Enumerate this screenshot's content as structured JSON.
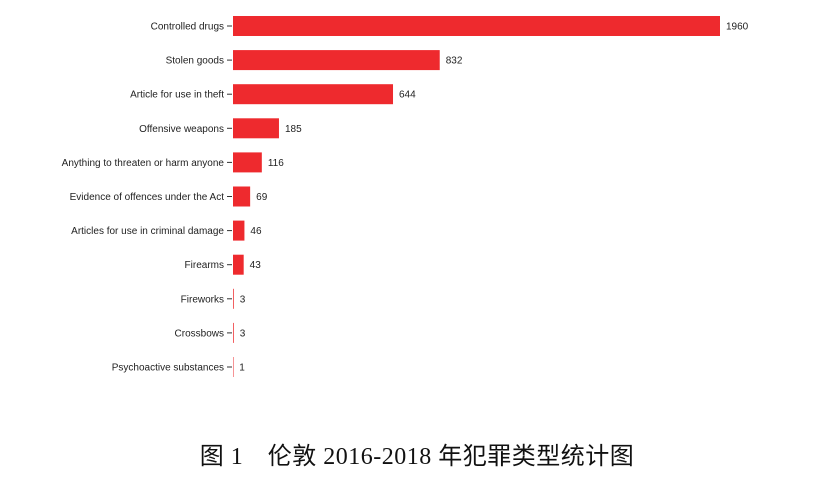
{
  "caption": "图 1　伦敦 2016-2018 年犯罪类型统计图",
  "colors": {
    "bar": "#ee2a2e"
  },
  "chart_data": {
    "type": "bar",
    "orientation": "horizontal",
    "categories": [
      "Controlled drugs",
      "Stolen goods",
      "Article for use in theft",
      "Offensive weapons",
      "Anything to threaten or harm anyone",
      "Evidence of offences under the Act",
      "Articles for use in criminal damage",
      "Firearms",
      "Fireworks",
      "Crossbows",
      "Psychoactive substances"
    ],
    "values": [
      1960,
      832,
      644,
      185,
      116,
      69,
      46,
      43,
      3,
      3,
      1
    ],
    "xlim": [
      0,
      1960
    ],
    "grid": false,
    "legend": "none",
    "title": "",
    "xlabel": "",
    "ylabel": ""
  }
}
